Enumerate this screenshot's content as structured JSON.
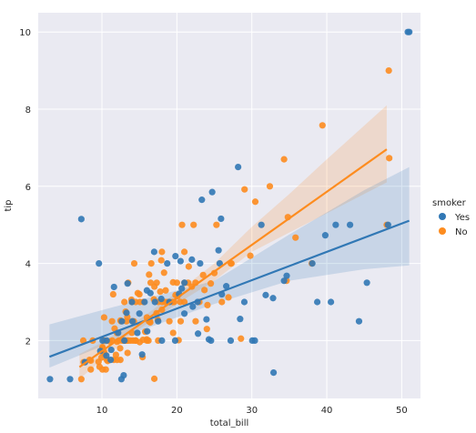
{
  "chart_data": {
    "type": "scatter",
    "xlabel": "total_bill",
    "ylabel": "tip",
    "xlim": [
      1.5,
      52.5
    ],
    "ylim": [
      0.5,
      10.5
    ],
    "x_ticks": [
      10,
      20,
      30,
      40,
      50
    ],
    "y_ticks": [
      2,
      4,
      6,
      8,
      10
    ],
    "grid": true,
    "legend": {
      "title": "smoker",
      "placement": "right",
      "entries": [
        "Yes",
        "No"
      ]
    },
    "series": [
      {
        "name": "Yes",
        "color": "#3178b5",
        "fit": {
          "intercept": 1.36,
          "slope": 0.0735
        },
        "ci_low": [
          [
            3,
            1.3
          ],
          [
            15,
            2.25
          ],
          [
            25,
            2.95
          ],
          [
            35,
            3.55
          ],
          [
            45,
            3.85
          ],
          [
            51,
            3.95
          ]
        ],
        "ci_high": [
          [
            3,
            2.42
          ],
          [
            15,
            3.05
          ],
          [
            25,
            3.55
          ],
          [
            35,
            4.75
          ],
          [
            45,
            5.9
          ],
          [
            51,
            6.5
          ]
        ],
        "points": [
          [
            7.25,
            5.15
          ],
          [
            51,
            10
          ],
          [
            50.81,
            10
          ],
          [
            48.17,
            5
          ],
          [
            45.35,
            3.5
          ],
          [
            44.3,
            2.5
          ],
          [
            43.1,
            5
          ],
          [
            41.19,
            5
          ],
          [
            40.55,
            3
          ],
          [
            38.73,
            3
          ],
          [
            38.07,
            4
          ],
          [
            39.8,
            4.73
          ],
          [
            34.65,
            3.68
          ],
          [
            34.3,
            3.55
          ],
          [
            32.9,
            1.17
          ],
          [
            32.83,
            3.1
          ],
          [
            31.27,
            5
          ],
          [
            31.85,
            3.18
          ],
          [
            30.4,
            2
          ],
          [
            30.06,
            2
          ],
          [
            28.44,
            2.56
          ],
          [
            28.17,
            6.5
          ],
          [
            27.18,
            2
          ],
          [
            26.59,
            3.41
          ],
          [
            25.89,
            5.16
          ],
          [
            25.71,
            4
          ],
          [
            25.56,
            4.34
          ],
          [
            24.71,
            5.85
          ],
          [
            24.55,
            2
          ],
          [
            24.27,
            2.03
          ],
          [
            23.95,
            2.55
          ],
          [
            23.33,
            5.65
          ],
          [
            23.1,
            4
          ],
          [
            22.76,
            3
          ],
          [
            22.12,
            2.88
          ],
          [
            22.82,
            2.18
          ],
          [
            21.01,
            3.5
          ],
          [
            20.65,
            3.35
          ],
          [
            20.49,
            4.06
          ],
          [
            20.29,
            3.21
          ],
          [
            19.81,
            4.19
          ],
          [
            19.77,
            2
          ],
          [
            18.71,
            4
          ],
          [
            17.92,
            3.08
          ],
          [
            17.07,
            3
          ],
          [
            16.97,
            4.3
          ],
          [
            16.47,
            3.23
          ],
          [
            15.69,
            3
          ],
          [
            16.04,
            2.24
          ],
          [
            15.36,
            1.64
          ],
          [
            14.73,
            2.2
          ],
          [
            14.07,
            2.5
          ],
          [
            13.42,
            3.48
          ],
          [
            13.28,
            2.72
          ],
          [
            12.9,
            1.1
          ],
          [
            12.66,
            2.5
          ],
          [
            12.6,
            1
          ],
          [
            11.24,
            1.76
          ],
          [
            10.63,
            2
          ],
          [
            10.09,
            2
          ],
          [
            9.6,
            4
          ],
          [
            11.17,
            1.5
          ],
          [
            10.59,
            1.61
          ],
          [
            9.78,
            1.73
          ],
          [
            7.74,
            1.44
          ],
          [
            5.75,
            1
          ],
          [
            3.07,
            1
          ],
          [
            11.61,
            3.39
          ],
          [
            12.16,
            2.2
          ],
          [
            13.0,
            2.0
          ],
          [
            14.0,
            3.0
          ],
          [
            18.0,
            2.0
          ],
          [
            19.0,
            3.0
          ],
          [
            22.0,
            4.1
          ],
          [
            26.0,
            3.2
          ],
          [
            29.0,
            3.0
          ],
          [
            21.0,
            2.7
          ],
          [
            17.5,
            2.5
          ],
          [
            16.0,
            3.3
          ],
          [
            15.0,
            2.7
          ]
        ]
      },
      {
        "name": "No",
        "color": "#fd8c1f",
        "fit": {
          "intercept": 0.35,
          "slope": 0.1377
        },
        "ci_low": [
          [
            7,
            1.0
          ],
          [
            10,
            1.5
          ],
          [
            15,
            2.3
          ],
          [
            20,
            2.95
          ],
          [
            25,
            3.55
          ],
          [
            30,
            4.3
          ],
          [
            35,
            4.8
          ],
          [
            40,
            5.3
          ],
          [
            48,
            6.1
          ]
        ],
        "ci_high": [
          [
            7,
            1.65
          ],
          [
            10,
            1.95
          ],
          [
            15,
            2.55
          ],
          [
            20,
            3.25
          ],
          [
            25,
            4.0
          ],
          [
            30,
            4.95
          ],
          [
            35,
            5.8
          ],
          [
            40,
            6.7
          ],
          [
            48,
            8.1
          ]
        ],
        "points": [
          [
            48.27,
            9
          ],
          [
            48.33,
            6.73
          ],
          [
            48.0,
            5
          ],
          [
            39.42,
            7.58
          ],
          [
            38.0,
            4
          ],
          [
            35.83,
            4.67
          ],
          [
            34.81,
            5.2
          ],
          [
            34.63,
            3.55
          ],
          [
            34.3,
            6.7
          ],
          [
            32.4,
            6
          ],
          [
            30.46,
            5.6
          ],
          [
            29.8,
            4.2
          ],
          [
            29.03,
            5.92
          ],
          [
            28.55,
            2.05
          ],
          [
            27.28,
            4
          ],
          [
            27.2,
            4
          ],
          [
            26.88,
            3.12
          ],
          [
            25.28,
            5
          ],
          [
            25.0,
            3.75
          ],
          [
            24.52,
            3.48
          ],
          [
            24.08,
            2.92
          ],
          [
            23.68,
            3.31
          ],
          [
            22.49,
            3.5
          ],
          [
            22.23,
            5
          ],
          [
            21.58,
            3.92
          ],
          [
            21.5,
            3.5
          ],
          [
            21.01,
            3.5
          ],
          [
            20.69,
            5
          ],
          [
            20.45,
            3
          ],
          [
            20.23,
            2.01
          ],
          [
            20.08,
            3.15
          ],
          [
            19.82,
            3.18
          ],
          [
            19.65,
            3
          ],
          [
            19.49,
            3.51
          ],
          [
            19.44,
            3
          ],
          [
            18.78,
            3
          ],
          [
            18.43,
            3
          ],
          [
            18.29,
            3.76
          ],
          [
            18.04,
            3
          ],
          [
            17.92,
            4.08
          ],
          [
            17.78,
            3.27
          ],
          [
            17.51,
            3
          ],
          [
            17.46,
            2.54
          ],
          [
            17.31,
            3.5
          ],
          [
            17.29,
            2.71
          ],
          [
            16.99,
            1.01
          ],
          [
            16.93,
            3.07
          ],
          [
            16.58,
            4
          ],
          [
            16.45,
            2.47
          ],
          [
            16.4,
            2.5
          ],
          [
            16.29,
            3.71
          ],
          [
            16.27,
            2.5
          ],
          [
            16.21,
            2
          ],
          [
            16.0,
            2
          ],
          [
            15.98,
            2.03
          ],
          [
            15.77,
            2.23
          ],
          [
            15.53,
            3
          ],
          [
            15.48,
            2.02
          ],
          [
            15.42,
            1.57
          ],
          [
            15.06,
            3
          ],
          [
            15.04,
            1.96
          ],
          [
            14.78,
            3.23
          ],
          [
            14.52,
            2
          ],
          [
            14.48,
            2
          ],
          [
            14.31,
            4
          ],
          [
            14.26,
            2.5
          ],
          [
            14.15,
            2
          ],
          [
            14.07,
            2.5
          ],
          [
            14.0,
            3
          ],
          [
            13.94,
            3.06
          ],
          [
            13.81,
            2
          ],
          [
            13.51,
            2
          ],
          [
            13.42,
            1.68
          ],
          [
            13.39,
            2.61
          ],
          [
            13.37,
            2
          ],
          [
            13.27,
            2.5
          ],
          [
            13.16,
            2.75
          ],
          [
            13.13,
            2
          ],
          [
            13.03,
            2
          ],
          [
            13.0,
            2
          ],
          [
            12.74,
            2.01
          ],
          [
            12.69,
            2
          ],
          [
            12.54,
            2.5
          ],
          [
            12.48,
            2.52
          ],
          [
            12.46,
            1.5
          ],
          [
            12.43,
            1.8
          ],
          [
            12.26,
            2
          ],
          [
            12.03,
            1.5
          ],
          [
            12.02,
            1.97
          ],
          [
            11.87,
            1.63
          ],
          [
            11.69,
            2.31
          ],
          [
            11.59,
            1.5
          ],
          [
            11.38,
            2
          ],
          [
            11.35,
            2.5
          ],
          [
            11.02,
            1.98
          ],
          [
            10.77,
            1.47
          ],
          [
            10.65,
            1.5
          ],
          [
            10.51,
            1.25
          ],
          [
            10.34,
            1.66
          ],
          [
            10.33,
            2
          ],
          [
            10.29,
            2.6
          ],
          [
            10.27,
            1.71
          ],
          [
            10.07,
            1.25
          ],
          [
            9.94,
            1.56
          ],
          [
            9.68,
            1.32
          ],
          [
            9.55,
            1.45
          ],
          [
            8.77,
            2
          ],
          [
            8.51,
            1.25
          ],
          [
            8.35,
            1.5
          ],
          [
            8.52,
            1.48
          ],
          [
            7.56,
            1.44
          ],
          [
            7.51,
            2
          ],
          [
            7.25,
            1
          ],
          [
            10.07,
            1.83
          ],
          [
            10.09,
            1.8
          ],
          [
            13.0,
            3.0
          ],
          [
            14.0,
            2.2
          ],
          [
            15.0,
            3.2
          ],
          [
            16.0,
            2.6
          ],
          [
            17.0,
            3.4
          ],
          [
            18.0,
            2.8
          ],
          [
            18.5,
            3.3
          ],
          [
            19.0,
            2.5
          ],
          [
            20.0,
            3.5
          ],
          [
            21.0,
            3.0
          ],
          [
            22.0,
            3.4
          ],
          [
            23.0,
            3.0
          ],
          [
            24.0,
            2.3
          ],
          [
            19.5,
            2.2
          ],
          [
            17.5,
            2.0
          ],
          [
            16.5,
            3.5
          ],
          [
            14.5,
            3.0
          ],
          [
            13.5,
            3.5
          ],
          [
            12.0,
            2.2
          ],
          [
            11.5,
            3.2
          ],
          [
            20.5,
            2.5
          ],
          [
            22.5,
            2.5
          ],
          [
            23.5,
            3.7
          ],
          [
            26.0,
            3.0
          ],
          [
            21.0,
            4.3
          ],
          [
            18.0,
            4.3
          ]
        ]
      }
    ]
  }
}
